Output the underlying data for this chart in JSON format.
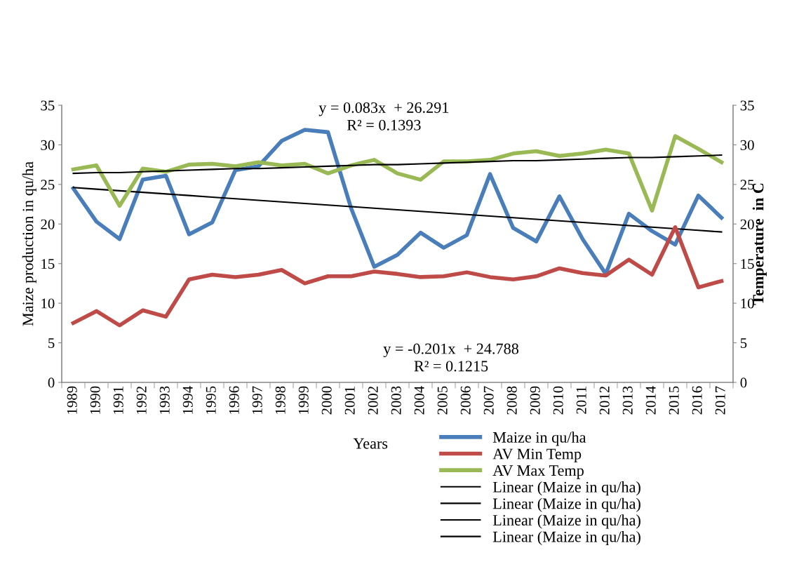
{
  "chart_data": {
    "type": "line",
    "xlabel": "Years",
    "ylabel": "Maize production in qu/ha",
    "y2label": "Temperature  in C",
    "categories": [
      "1989",
      "1990",
      "1991",
      "1992",
      "1993",
      "1994",
      "1995",
      "1996",
      "1997",
      "1998",
      "1999",
      "2000",
      "2001",
      "2002",
      "2003",
      "2004",
      "2005",
      "2006",
      "2007",
      "2008",
      "2009",
      "2010",
      "2011",
      "2012",
      "2013",
      "2014",
      "2015",
      "2016",
      "2017"
    ],
    "series": [
      {
        "name": "Maize in qu/ha",
        "color": "#4a7ebb",
        "values": [
          24.5,
          20.3,
          18.1,
          25.6,
          26.1,
          18.7,
          20.2,
          26.8,
          27.3,
          30.5,
          31.9,
          31.6,
          22.0,
          14.6,
          16.1,
          18.9,
          17.0,
          18.6,
          26.3,
          19.5,
          17.8,
          23.5,
          18.1,
          13.7,
          21.3,
          19.1,
          17.4,
          23.6,
          20.8
        ]
      },
      {
        "name": "AV Min Temp",
        "color": "#be4b48",
        "axis": "y2",
        "values": [
          7.5,
          9.0,
          7.2,
          9.1,
          8.3,
          13.0,
          13.6,
          13.3,
          13.6,
          14.2,
          12.5,
          13.4,
          13.4,
          14.0,
          13.7,
          13.3,
          13.4,
          13.9,
          13.3,
          13.0,
          13.4,
          14.4,
          13.8,
          13.5,
          15.5,
          13.6,
          19.6,
          12.0,
          12.8
        ]
      },
      {
        "name": "AV Max Temp",
        "color": "#98b954",
        "axis": "y2",
        "values": [
          26.9,
          27.4,
          22.3,
          27.0,
          26.6,
          27.5,
          27.6,
          27.3,
          27.8,
          27.4,
          27.6,
          26.4,
          27.4,
          28.1,
          26.4,
          25.6,
          27.9,
          27.9,
          28.1,
          28.9,
          29.2,
          28.6,
          28.9,
          29.4,
          28.9,
          21.7,
          31.1,
          29.5,
          27.8
        ]
      },
      {
        "name": "Linear (Maize in qu/ha)",
        "color": "#000000",
        "values": [
          24.6,
          24.4,
          24.2,
          24.0,
          23.8,
          23.6,
          23.4,
          23.2,
          23.0,
          22.8,
          22.6,
          22.4,
          22.2,
          22.0,
          21.8,
          21.6,
          21.4,
          21.2,
          21.0,
          20.8,
          20.6,
          20.4,
          20.2,
          20.0,
          19.8,
          19.6,
          19.4,
          19.2,
          19.0
        ]
      },
      {
        "name": "Linear (Maize in qu/ha)",
        "color": "#000000",
        "axis": "y2",
        "values": [
          26.4,
          26.5,
          26.5,
          26.6,
          26.7,
          26.8,
          26.9,
          27.0,
          27.0,
          27.1,
          27.2,
          27.3,
          27.4,
          27.5,
          27.5,
          27.6,
          27.7,
          27.8,
          27.9,
          28.0,
          28.0,
          28.1,
          28.2,
          28.3,
          28.4,
          28.4,
          28.5,
          28.6,
          28.7
        ]
      },
      {
        "name": "Linear (Maize in qu/ha)",
        "color": "#000000",
        "values": [
          null,
          null,
          null,
          null,
          null,
          null,
          null,
          null,
          null,
          null,
          null,
          null,
          null,
          null,
          null,
          null,
          null,
          null,
          null,
          null,
          null,
          null,
          null,
          null,
          null,
          null,
          null,
          null,
          null
        ]
      },
      {
        "name": "Linear (Maize in qu/ha)",
        "color": "#000000",
        "axis": "y2",
        "values": [
          null,
          null,
          null,
          null,
          null,
          null,
          null,
          null,
          null,
          null,
          null,
          null,
          null,
          null,
          null,
          null,
          null,
          null,
          null,
          null,
          null,
          null,
          null,
          null,
          null,
          null,
          null,
          null,
          null
        ]
      }
    ],
    "ylim": [
      0,
      35
    ],
    "yticks": [
      0,
      5,
      10,
      15,
      20,
      25,
      30,
      35
    ],
    "y2lim": [
      0,
      35
    ],
    "y2ticks": [
      0,
      5,
      10,
      15,
      20,
      25,
      30,
      35
    ],
    "annotations": [
      "y = 0.083x  + 26.291\nR² = 0.1393",
      "y = -0.201x  + 24.788\nR² = 0.1215"
    ],
    "legend": "bottom",
    "grid": false,
    "marker": "none",
    "line_style": "solid"
  }
}
